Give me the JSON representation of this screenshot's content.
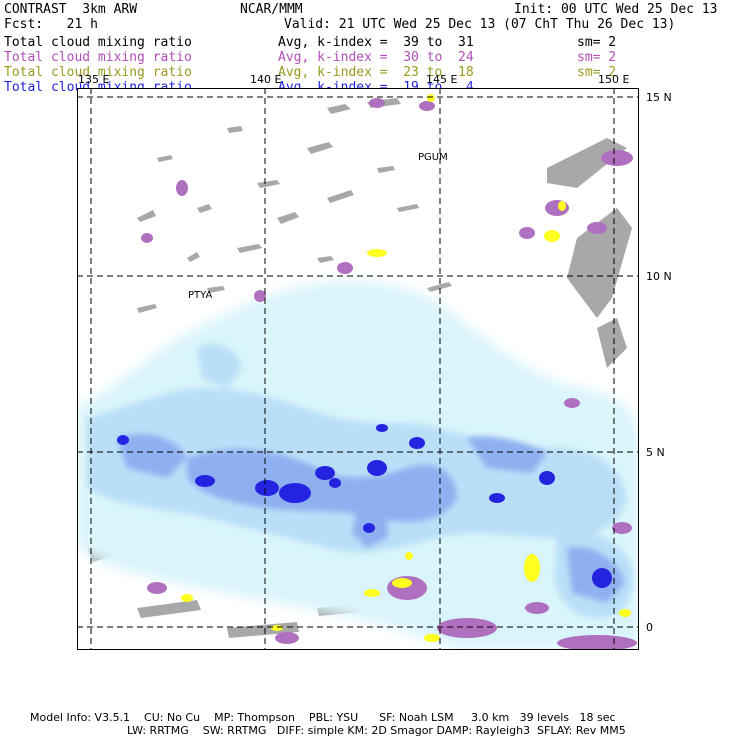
{
  "header": {
    "left1": "CONTRAST  3km ARW",
    "center1": "NCAR/MMM",
    "right1": "Init: 00 UTC Wed 25 Dec 13",
    "left2": "Fcst:   21 h",
    "right2": "Valid: 21 UTC Wed 25 Dec 13 (07 ChT Thu 26 Dec 13)"
  },
  "fields": [
    {
      "name": "Total cloud mixing ratio",
      "range": "Avg, k-index =  39 to  31",
      "sm": "sm= 2",
      "color": "#000000"
    },
    {
      "name": "Total cloud mixing ratio",
      "range": "Avg, k-index =  30 to  24",
      "sm": "sm= 2",
      "color": "#b24fb8"
    },
    {
      "name": "Total cloud mixing ratio",
      "range": "Avg, k-index =  23 to  18",
      "sm": "sm= 2",
      "color": "#9a9a20"
    },
    {
      "name": "Total cloud mixing ratio",
      "range": "Avg, k-index =  19 to   4",
      "sm": "",
      "color": "#2424e0"
    }
  ],
  "map": {
    "lon_labels": [
      "135 E",
      "140 E",
      "145 E",
      "150 E"
    ],
    "lat_labels": [
      "15 N",
      "10 N",
      "5 N",
      "0"
    ],
    "places": [
      "PGUM",
      "PTYA"
    ]
  },
  "footer": {
    "line1": "Model Info: V3.5.1    CU: No Cu    MP: Thompson    PBL: YSU      SF: Noah LSM     3.0 km   39 levels   18 sec",
    "line2": "LW: RRTMG    SW: RRTMG   DIFF: simple KM: 2D Smagor DAMP: Rayleigh3  SFLAY: Rev MM5"
  },
  "colors": {
    "light_blue": "#d9f4fb",
    "mid_blue": "#b9dff8",
    "blue2": "#8fb0f0",
    "blue3": "#5a74ec",
    "blue4": "#2424e0",
    "purple": "#b070c0",
    "yellow": "#ffff20",
    "gray": "#a0a0a0"
  }
}
